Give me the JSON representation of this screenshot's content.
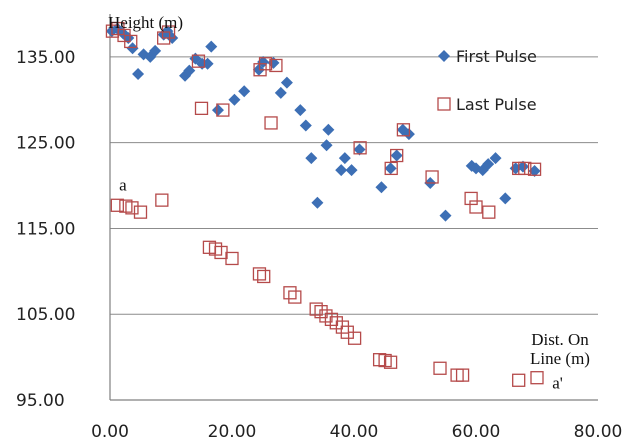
{
  "chart_data": {
    "type": "scatter",
    "title": "",
    "ylabel": "Height (m)",
    "xlabel": "Dist. On Line (m)",
    "xlabel_lines": [
      "Dist. On",
      "Line (m)"
    ],
    "xlim": [
      0,
      80
    ],
    "ylim": [
      95,
      140
    ],
    "xticks": [
      0,
      20,
      40,
      60,
      80
    ],
    "yticks": [
      95,
      105,
      115,
      125,
      135
    ],
    "xtick_labels": [
      "0.00",
      "20.00",
      "40.00",
      "60.00",
      "80.00"
    ],
    "ytick_labels": [
      "95.00",
      "105.00",
      "115.00",
      "125.00",
      "135.00"
    ],
    "grid": "horizontal",
    "legend": "top-right",
    "annotations": [
      {
        "text": "a",
        "x": 1.5,
        "y": 117.8
      },
      {
        "text": "a'",
        "x": 72.5,
        "y": 96.6
      }
    ],
    "series": [
      {
        "name": "First Pulse",
        "marker": "diamond-filled",
        "color": "#3D6FB5",
        "points": [
          [
            0.3,
            138
          ],
          [
            1.2,
            138.3
          ],
          [
            2.2,
            137.7
          ],
          [
            3,
            137.2
          ],
          [
            3.7,
            136
          ],
          [
            4.6,
            133
          ],
          [
            5.5,
            135.3
          ],
          [
            6.6,
            135
          ],
          [
            7.4,
            135.7
          ],
          [
            8.8,
            137.6
          ],
          [
            9.4,
            138
          ],
          [
            10.2,
            137.2
          ],
          [
            12.3,
            132.8
          ],
          [
            13,
            133.4
          ],
          [
            14,
            134.8
          ],
          [
            15.1,
            134.2
          ],
          [
            16,
            134.2
          ],
          [
            16.6,
            136.2
          ],
          [
            17.7,
            128.8
          ],
          [
            20.4,
            130
          ],
          [
            22,
            131
          ],
          [
            24.4,
            133.5
          ],
          [
            25.1,
            134.4
          ],
          [
            26.8,
            134.3
          ],
          [
            28,
            130.8
          ],
          [
            29,
            132
          ],
          [
            31.2,
            128.8
          ],
          [
            32.1,
            127
          ],
          [
            33,
            123.2
          ],
          [
            34,
            118
          ],
          [
            35.5,
            124.7
          ],
          [
            35.8,
            126.5
          ],
          [
            37.9,
            121.8
          ],
          [
            38.5,
            123.2
          ],
          [
            39.6,
            121.8
          ],
          [
            40.9,
            124.2
          ],
          [
            44.5,
            119.8
          ],
          [
            46,
            122
          ],
          [
            47,
            123.5
          ],
          [
            48,
            126.5
          ],
          [
            49,
            126
          ],
          [
            52.5,
            120.3
          ],
          [
            55,
            116.5
          ],
          [
            59.3,
            122.3
          ],
          [
            60,
            122
          ],
          [
            61.1,
            121.8
          ],
          [
            62,
            122.5
          ],
          [
            63.2,
            123.2
          ],
          [
            64.8,
            118.5
          ],
          [
            66.5,
            122
          ],
          [
            67.7,
            122.2
          ],
          [
            69.6,
            121.7
          ]
        ]
      },
      {
        "name": "Last Pulse",
        "marker": "square-open",
        "color": "#B54A4A",
        "points": [
          [
            0.4,
            138
          ],
          [
            1.3,
            138.3
          ],
          [
            2.3,
            137.5
          ],
          [
            3.4,
            136.8
          ],
          [
            8.8,
            137.2
          ],
          [
            9.6,
            137.9
          ],
          [
            14.5,
            134.5
          ],
          [
            15,
            129
          ],
          [
            18.5,
            128.8
          ],
          [
            24.6,
            133.5
          ],
          [
            25.5,
            134.2
          ],
          [
            26.4,
            127.3
          ],
          [
            27.2,
            134
          ],
          [
            41,
            124.4
          ],
          [
            46.1,
            122
          ],
          [
            47,
            123.5
          ],
          [
            48.1,
            126.5
          ],
          [
            52.8,
            121
          ],
          [
            67,
            122
          ],
          [
            68,
            122
          ],
          [
            69.6,
            121.9
          ],
          [
            1.2,
            117.7
          ],
          [
            2.6,
            117.6
          ],
          [
            3.6,
            117.4
          ],
          [
            5,
            116.9
          ],
          [
            8.5,
            118.3
          ],
          [
            16.3,
            112.8
          ],
          [
            17.3,
            112.6
          ],
          [
            18.2,
            112.2
          ],
          [
            20,
            111.5
          ],
          [
            24.5,
            109.7
          ],
          [
            25.2,
            109.4
          ],
          [
            29.5,
            107.5
          ],
          [
            30.3,
            107
          ],
          [
            33.8,
            105.6
          ],
          [
            34.6,
            105.3
          ],
          [
            35.4,
            104.8
          ],
          [
            36.3,
            104.4
          ],
          [
            37.1,
            104
          ],
          [
            38.1,
            103.5
          ],
          [
            38.9,
            102.9
          ],
          [
            40.1,
            102.2
          ],
          [
            44.2,
            99.7
          ],
          [
            45.1,
            99.6
          ],
          [
            46,
            99.4
          ],
          [
            54.1,
            98.7
          ],
          [
            56.9,
            97.9
          ],
          [
            57.8,
            97.9
          ],
          [
            59.2,
            118.5
          ],
          [
            60,
            117.5
          ],
          [
            62.1,
            116.9
          ],
          [
            67,
            97.3
          ],
          [
            70,
            97.6
          ]
        ]
      }
    ]
  }
}
